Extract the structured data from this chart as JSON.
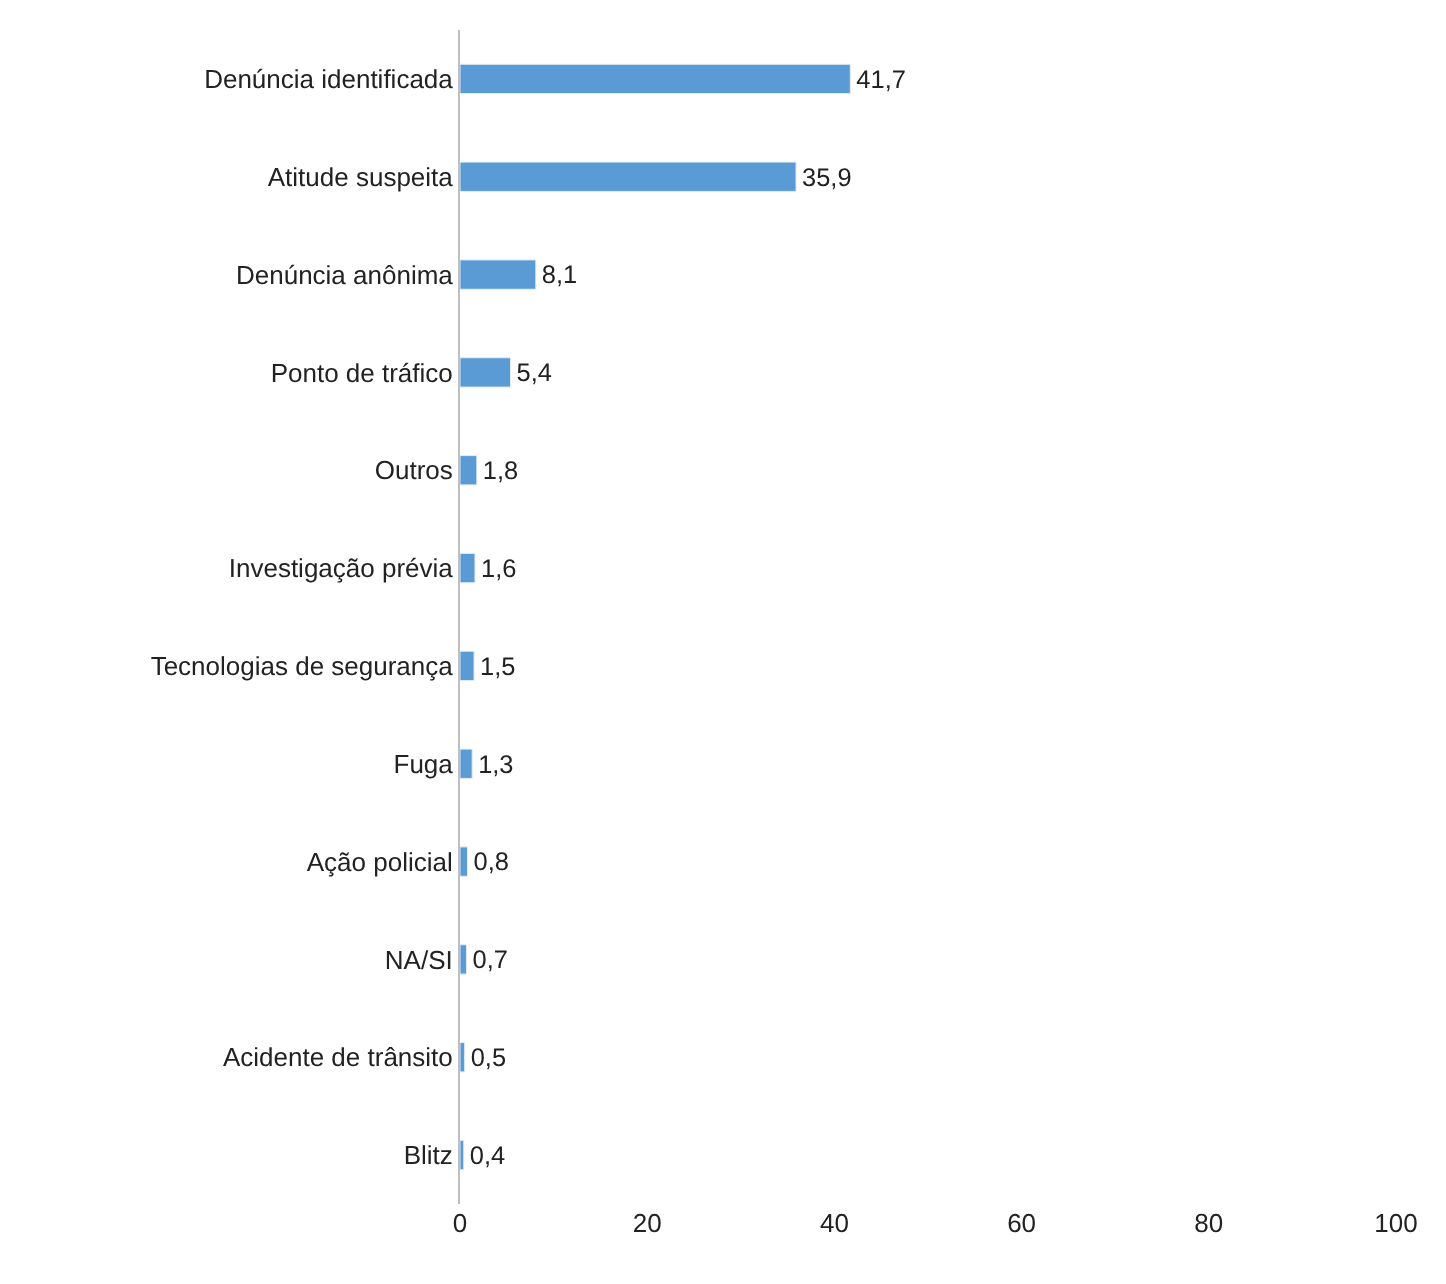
{
  "chart_data": {
    "type": "bar",
    "orientation": "horizontal",
    "categories": [
      "Denúncia identificada",
      "Atitude suspeita",
      "Denúncia anônima",
      "Ponto de tráfico",
      "Outros",
      "Investigação prévia",
      "Tecnologias de segurança",
      "Fuga",
      "Ação policial",
      "NA/SI",
      "Acidente de trânsito",
      "Blitz"
    ],
    "values": [
      41.7,
      35.9,
      8.1,
      5.4,
      1.8,
      1.6,
      1.5,
      1.3,
      0.8,
      0.7,
      0.5,
      0.4
    ],
    "value_labels": [
      "41,7",
      "35,9",
      "8,1",
      "5,4",
      "1,8",
      "1,6",
      "1,5",
      "1,3",
      "0,8",
      "0,7",
      "0,5",
      "0,4"
    ],
    "color": "#5b9bd5",
    "xlim": [
      0,
      100
    ],
    "xticks": [
      0,
      20,
      40,
      60,
      80,
      100
    ],
    "legend": false
  }
}
